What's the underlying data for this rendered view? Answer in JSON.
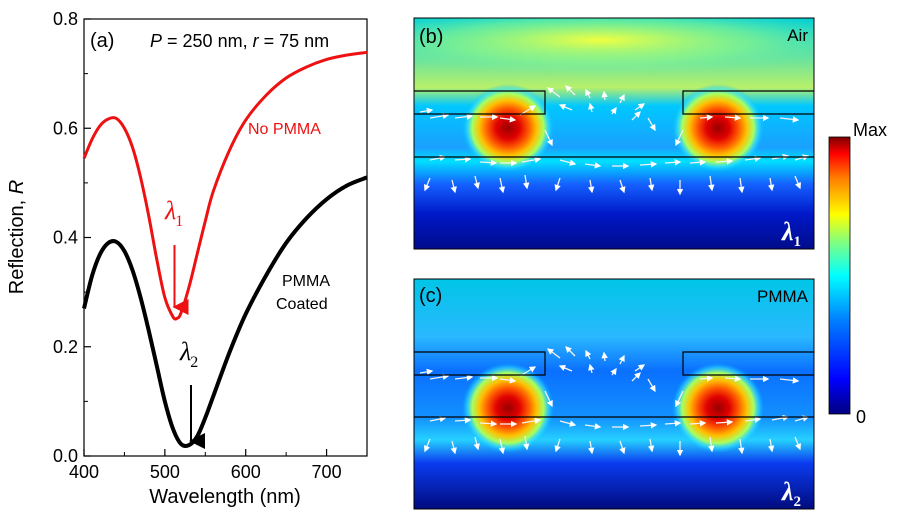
{
  "chart_data": [
    {
      "panel": "(a)",
      "type": "line",
      "annotation": "P = 250 nm, r = 75 nm",
      "annotation_parts": {
        "p_sym": "P",
        "p_val": " = 250 nm, ",
        "r_sym": "r",
        "r_val": " = 75 nm"
      },
      "xlabel": "Wavelength (nm)",
      "ylabel": "Reflection, ",
      "ylabel_symbol": "R",
      "xlim": [
        400,
        750
      ],
      "ylim": [
        0.0,
        0.8
      ],
      "xticks": [
        "400",
        "500",
        "600",
        "700"
      ],
      "xtick_values": [
        400,
        500,
        600,
        700
      ],
      "yticks": [
        "0.0",
        "0.2",
        "0.4",
        "0.6",
        "0.8"
      ],
      "ytick_values": [
        0.0,
        0.2,
        0.4,
        0.6,
        0.8
      ],
      "series": [
        {
          "name": "No PMMA",
          "color": "#ee1111",
          "x": [
            400,
            410,
            420,
            430,
            440,
            450,
            460,
            470,
            480,
            490,
            500,
            510,
            515,
            520,
            530,
            540,
            550,
            560,
            580,
            600,
            625,
            650,
            675,
            700,
            725,
            750
          ],
          "y": [
            0.545,
            0.58,
            0.605,
            0.617,
            0.618,
            0.6,
            0.565,
            0.51,
            0.44,
            0.36,
            0.29,
            0.255,
            0.252,
            0.262,
            0.31,
            0.37,
            0.43,
            0.485,
            0.56,
            0.615,
            0.66,
            0.692,
            0.712,
            0.726,
            0.734,
            0.739
          ]
        },
        {
          "name": "PMMA Coated",
          "color": "#000000",
          "x": [
            400,
            410,
            420,
            430,
            440,
            450,
            460,
            470,
            480,
            490,
            500,
            510,
            520,
            530,
            540,
            550,
            560,
            580,
            600,
            625,
            650,
            675,
            700,
            725,
            750
          ],
          "y": [
            0.27,
            0.33,
            0.37,
            0.39,
            0.392,
            0.375,
            0.34,
            0.29,
            0.23,
            0.165,
            0.1,
            0.05,
            0.022,
            0.02,
            0.036,
            0.07,
            0.11,
            0.19,
            0.26,
            0.33,
            0.39,
            0.435,
            0.47,
            0.495,
            0.51
          ]
        }
      ],
      "labels": {
        "no_pmma": "No PMMA",
        "pmma_line1": "PMMA",
        "pmma_line2": "Coated",
        "lambda1_symbol": "λ",
        "lambda1_sub": "1",
        "lambda2_symbol": "λ",
        "lambda2_sub": "2"
      },
      "markers": [
        {
          "name": "lambda1",
          "x": 512,
          "y": 0.255,
          "color": "#ee1111"
        },
        {
          "name": "lambda2",
          "x": 530,
          "y": 0.02,
          "color": "#000000"
        }
      ]
    },
    {
      "panel": "(b)",
      "type": "heatmap",
      "medium_label": "Air",
      "wavelength_symbol": "λ",
      "wavelength_sub": "1"
    },
    {
      "panel": "(c)",
      "type": "heatmap",
      "medium_label": "PMMA",
      "wavelength_symbol": "λ",
      "wavelength_sub": "2"
    }
  ],
  "colorbar": {
    "max_label": "Max",
    "min_label": "0",
    "colors": [
      "#00007f",
      "#0000ff",
      "#007fff",
      "#00ffff",
      "#7fff7f",
      "#ffff00",
      "#ff7f00",
      "#ff0000",
      "#7f0000"
    ]
  }
}
